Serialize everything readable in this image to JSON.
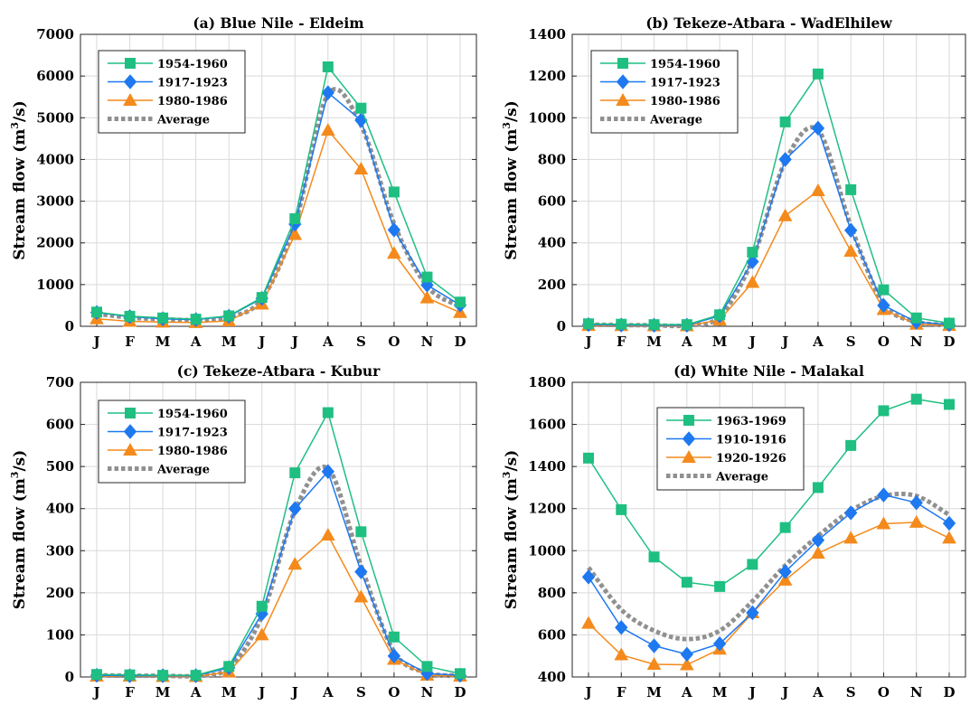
{
  "figure": {
    "ylabel_main": "Stream flow (m",
    "ylabel_sup": "3",
    "ylabel_tail": "/s)"
  },
  "colors": {
    "first": "#1fbf82",
    "second": "#1e78f0",
    "third": "#f48a1c",
    "average": "#909090",
    "grid": "#d9d9d9"
  },
  "chart_data": [
    {
      "type": "line",
      "title": "(a) Blue Nile - Eldeim",
      "ylabel": "Stream flow (m³/s)",
      "categories": [
        "J",
        "F",
        "M",
        "A",
        "M",
        "J",
        "J",
        "A",
        "S",
        "O",
        "N",
        "D"
      ],
      "ylim": [
        0,
        7000
      ],
      "yticks": [
        0,
        1000,
        2000,
        3000,
        4000,
        5000,
        6000,
        7000
      ],
      "grid": true,
      "legend": "top-left",
      "series": [
        {
          "name": "1954-1960",
          "marker": "square",
          "values": [
            340,
            240,
            200,
            170,
            250,
            690,
            2580,
            6220,
            5230,
            3220,
            1180,
            580
          ]
        },
        {
          "name": "1917-1923",
          "marker": "diamond",
          "values": [
            330,
            230,
            180,
            160,
            240,
            670,
            2450,
            5600,
            4940,
            2310,
            990,
            510
          ]
        },
        {
          "name": "1980-1986",
          "marker": "triangle",
          "values": [
            180,
            120,
            100,
            90,
            130,
            530,
            2200,
            4700,
            3770,
            1750,
            680,
            330
          ]
        },
        {
          "name": "Average",
          "marker": "none",
          "values": [
            300,
            210,
            170,
            150,
            220,
            660,
            2440,
            5560,
            4820,
            2460,
            960,
            480
          ]
        }
      ]
    },
    {
      "type": "line",
      "title": "(b) Tekeze-Atbara - WadElhilew",
      "ylabel": "Stream flow (m³/s)",
      "categories": [
        "J",
        "F",
        "M",
        "A",
        "M",
        "J",
        "J",
        "A",
        "S",
        "O",
        "N",
        "D"
      ],
      "ylim": [
        0,
        1400
      ],
      "yticks": [
        0,
        200,
        400,
        600,
        800,
        1000,
        1200,
        1400
      ],
      "grid": true,
      "legend": "top-left",
      "series": [
        {
          "name": "1954-1960",
          "marker": "square",
          "values": [
            12,
            10,
            8,
            8,
            55,
            355,
            980,
            1210,
            655,
            175,
            40,
            15
          ]
        },
        {
          "name": "1917-1923",
          "marker": "diamond",
          "values": [
            8,
            6,
            5,
            5,
            50,
            310,
            800,
            950,
            460,
            100,
            20,
            8
          ]
        },
        {
          "name": "1980-1986",
          "marker": "triangle",
          "values": [
            4,
            3,
            2,
            2,
            30,
            210,
            530,
            650,
            360,
            80,
            10,
            4
          ]
        },
        {
          "name": "Average",
          "marker": "none",
          "values": [
            8,
            6,
            5,
            5,
            48,
            320,
            790,
            940,
            480,
            110,
            22,
            8
          ]
        }
      ]
    },
    {
      "type": "line",
      "title": "(c) Tekeze-Atbara - Kubur",
      "ylabel": "Stream flow (m³/s)",
      "categories": [
        "J",
        "F",
        "M",
        "A",
        "M",
        "J",
        "J",
        "A",
        "S",
        "O",
        "N",
        "D"
      ],
      "ylim": [
        0,
        700
      ],
      "yticks": [
        0,
        100,
        200,
        300,
        400,
        500,
        600,
        700
      ],
      "grid": true,
      "legend": "top-left",
      "series": [
        {
          "name": "1954-1960",
          "marker": "square",
          "values": [
            6,
            5,
            4,
            4,
            25,
            168,
            485,
            628,
            345,
            95,
            25,
            8
          ]
        },
        {
          "name": "1917-1923",
          "marker": "diamond",
          "values": [
            4,
            3,
            3,
            3,
            22,
            150,
            400,
            488,
            250,
            50,
            8,
            4
          ]
        },
        {
          "name": "1980-1986",
          "marker": "triangle",
          "values": [
            2,
            2,
            1,
            1,
            12,
            100,
            268,
            337,
            190,
            42,
            4,
            2
          ]
        },
        {
          "name": "Average",
          "marker": "none",
          "values": [
            4,
            3,
            3,
            3,
            22,
            145,
            395,
            495,
            265,
            60,
            10,
            4
          ]
        }
      ]
    },
    {
      "type": "line",
      "title": "(d) White Nile - Malakal",
      "ylabel": "Stream flow (m³/s)",
      "categories": [
        "J",
        "F",
        "M",
        "A",
        "M",
        "J",
        "J",
        "A",
        "S",
        "O",
        "N",
        "D"
      ],
      "ylim": [
        400,
        1800
      ],
      "yticks": [
        400,
        600,
        800,
        1000,
        1200,
        1400,
        1600,
        1800
      ],
      "grid": true,
      "legend": "top-center",
      "series": [
        {
          "name": "1963-1969",
          "marker": "square",
          "values": [
            1440,
            1195,
            970,
            850,
            830,
            935,
            1110,
            1300,
            1500,
            1665,
            1720,
            1695
          ]
        },
        {
          "name": "1910-1916",
          "marker": "diamond",
          "values": [
            875,
            635,
            548,
            508,
            558,
            705,
            900,
            1050,
            1180,
            1265,
            1228,
            1130
          ]
        },
        {
          "name": "1920-1926",
          "marker": "triangle",
          "values": [
            655,
            505,
            460,
            458,
            532,
            705,
            860,
            988,
            1060,
            1128,
            1135,
            1060
          ]
        },
        {
          "name": "Average",
          "marker": "none",
          "values": [
            920,
            720,
            620,
            580,
            620,
            760,
            930,
            1070,
            1190,
            1260,
            1260,
            1170
          ]
        }
      ]
    }
  ]
}
